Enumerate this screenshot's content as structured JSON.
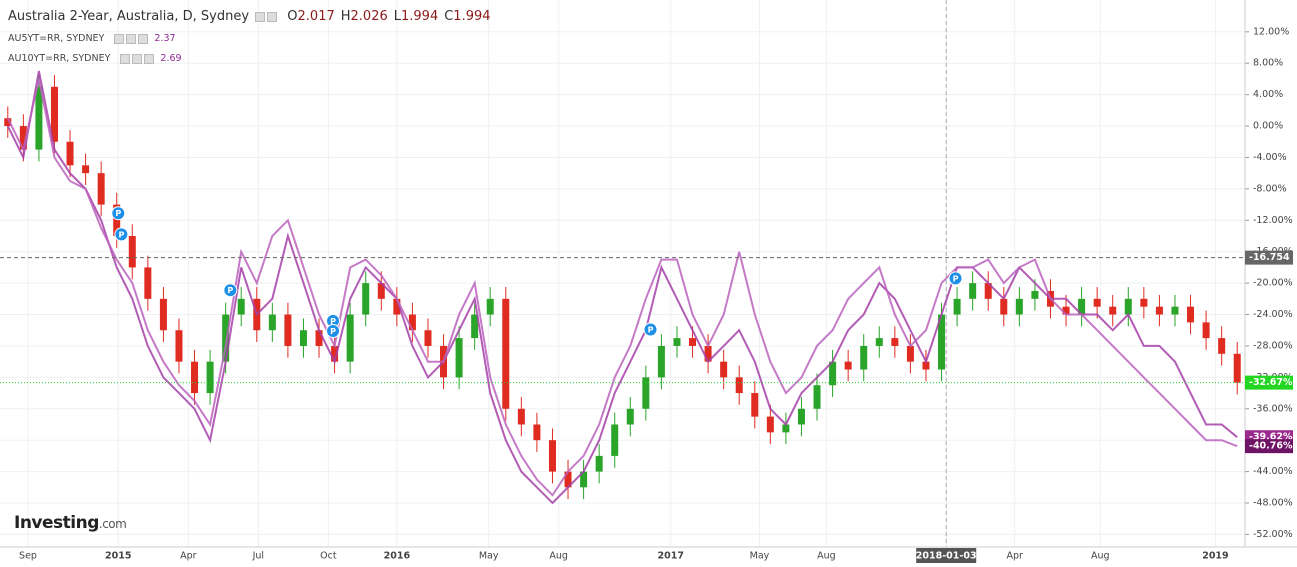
{
  "header": {
    "title": "Australia 2-Year, Australia, D, Sydney",
    "ohlc": [
      {
        "key": "O",
        "value": "2.017"
      },
      {
        "key": "H",
        "value": "2.026"
      },
      {
        "key": "L",
        "value": "1.994"
      },
      {
        "key": "C",
        "value": "1.994"
      }
    ]
  },
  "legend": [
    {
      "name": "AU5YT=RR, SYDNEY",
      "value": "2.37",
      "color": "#8e2a91"
    },
    {
      "name": "AU10YT=RR, SYDNEY",
      "value": "2.69",
      "color": "#8e2a91"
    }
  ],
  "logo": {
    "brand": "Investing",
    "suffix": ".com"
  },
  "chart_data": {
    "type": "candlestick",
    "xlim": [
      0,
      80
    ],
    "ylim": [
      -53.6,
      16.05
    ],
    "xticks": [
      {
        "value": 1.8,
        "label": "Sep"
      },
      {
        "value": 7.6,
        "label": "2015"
      },
      {
        "value": 12.1,
        "label": "Apr"
      },
      {
        "value": 16.6,
        "label": "Jul"
      },
      {
        "value": 21.1,
        "label": "Oct"
      },
      {
        "value": 25.5,
        "label": "2016"
      },
      {
        "value": 31.4,
        "label": "May"
      },
      {
        "value": 35.9,
        "label": "Aug"
      },
      {
        "value": 43.1,
        "label": "2017"
      },
      {
        "value": 48.8,
        "label": "May"
      },
      {
        "value": 53.1,
        "label": "Aug"
      },
      {
        "value": 60.8,
        "label": "2018-01-03"
      },
      {
        "value": 65.2,
        "label": "Apr"
      },
      {
        "value": 70.7,
        "label": "Aug"
      },
      {
        "value": 78.1,
        "label": "2019"
      }
    ],
    "crosshair_tick": 11,
    "yticks": [
      {
        "value": 12,
        "label": "12.00%"
      },
      {
        "value": 8,
        "label": "8.00%"
      },
      {
        "value": 4,
        "label": "4.00%"
      },
      {
        "value": 0,
        "label": "0.00%"
      },
      {
        "value": -4,
        "label": "-4.00%"
      },
      {
        "value": -8,
        "label": "-8.00%"
      },
      {
        "value": -12,
        "label": "-12.00%"
      },
      {
        "value": -16,
        "label": "-16.00%"
      },
      {
        "value": -20,
        "label": "-20.00%"
      },
      {
        "value": -24,
        "label": "-24.00%"
      },
      {
        "value": -28,
        "label": "-28.00%"
      },
      {
        "value": -32,
        "label": "-32.00%"
      },
      {
        "value": -36,
        "label": "-36.00%"
      },
      {
        "value": -40,
        "label": "-40.00%"
      },
      {
        "value": -44,
        "label": "-44.00%"
      },
      {
        "value": -48,
        "label": "-48.00%"
      },
      {
        "value": -52,
        "label": "-52.00%"
      }
    ],
    "grid": true,
    "up_color": "#2aa52a",
    "down_color": "#e02b20",
    "candles": {
      "open": [
        1,
        0,
        -3,
        5,
        -2,
        -5,
        -6,
        -10,
        -14,
        -18,
        -22,
        -26,
        -30,
        -34,
        -30,
        -24,
        -22,
        -26,
        -24,
        -28,
        -26,
        -28,
        -30,
        -24,
        -20,
        -22,
        -24,
        -26,
        -28,
        -32,
        -27,
        -24,
        -22,
        -36,
        -38,
        -40,
        -44,
        -46,
        -44,
        -42,
        -38,
        -36,
        -32,
        -28,
        -27,
        -28,
        -30,
        -32,
        -34,
        -37,
        -39,
        -38,
        -36,
        -33,
        -30,
        -31,
        -28,
        -27,
        -28,
        -30,
        -31,
        -24,
        -22,
        -20,
        -22,
        -24,
        -22,
        -21,
        -23,
        -24,
        -22,
        -23,
        -24,
        -22,
        -23,
        -24,
        -23,
        -25,
        -27,
        -29
      ],
      "high": [
        2.5,
        1.5,
        6.5,
        6.5,
        -0.5,
        -3.5,
        -4.5,
        -8.5,
        -12.5,
        -16.5,
        -20.5,
        -24.5,
        -28.5,
        -28.5,
        -22.5,
        -20.5,
        -20.5,
        -22.5,
        -22.5,
        -24.5,
        -24.5,
        -26.5,
        -22.5,
        -18.5,
        -18.5,
        -20.5,
        -22.5,
        -24.5,
        -26.5,
        -25.5,
        -22.5,
        -20.5,
        -20.5,
        -34.5,
        -36.5,
        -38.5,
        -42.5,
        -42.5,
        -40.5,
        -36.5,
        -34.5,
        -30.5,
        -26.5,
        -25.5,
        -25.5,
        -26.5,
        -28.5,
        -30.5,
        -32.5,
        -35.5,
        -36.5,
        -34.5,
        -31.5,
        -28.5,
        -28.5,
        -26.5,
        -25.5,
        -25.5,
        -26.5,
        -28.5,
        -22.5,
        -20.5,
        -18.5,
        -18.5,
        -20.5,
        -20.5,
        -19.5,
        -19.5,
        -21.5,
        -20.5,
        -20.5,
        -21.5,
        -20.5,
        -20.5,
        -21.5,
        -21.5,
        -21.5,
        -23.5,
        -25.5,
        -27.5
      ],
      "low": [
        -1.5,
        -4.5,
        -4.5,
        -3.5,
        -6.5,
        -7.5,
        -11.5,
        -15.5,
        -19.5,
        -23.5,
        -27.5,
        -31.5,
        -35.5,
        -35.5,
        -31.5,
        -25.5,
        -27.5,
        -27.5,
        -29.5,
        -29.5,
        -29.5,
        -31.5,
        -31.5,
        -25.5,
        -23.5,
        -25.5,
        -27.5,
        -29.5,
        -33.5,
        -33.5,
        -28.5,
        -25.5,
        -37.5,
        -39.5,
        -41.5,
        -45.5,
        -47.5,
        -47.5,
        -45.5,
        -43.5,
        -39.5,
        -37.5,
        -33.5,
        -29.5,
        -29.5,
        -31.5,
        -33.5,
        -35.5,
        -38.5,
        -40.5,
        -40.5,
        -39.5,
        -37.5,
        -34.5,
        -32.5,
        -32.5,
        -29.5,
        -29.5,
        -31.5,
        -32.5,
        -32.5,
        -25.5,
        -23.5,
        -23.5,
        -25.5,
        -25.5,
        -23.5,
        -24.5,
        -25.5,
        -25.5,
        -24.5,
        -25.5,
        -25.5,
        -24.5,
        -25.5,
        -25.5,
        -26.5,
        -28.5,
        -30.5,
        -34.17
      ],
      "close": [
        0,
        -3,
        5,
        -2,
        -5,
        -6,
        -10,
        -14,
        -18,
        -22,
        -26,
        -30,
        -34,
        -30,
        -24,
        -22,
        -26,
        -24,
        -28,
        -26,
        -28,
        -30,
        -24,
        -20,
        -22,
        -24,
        -26,
        -28,
        -32,
        -27,
        -24,
        -22,
        -36,
        -38,
        -40,
        -44,
        -46,
        -44,
        -42,
        -38,
        -36,
        -32,
        -28,
        -27,
        -28,
        -30,
        -32,
        -34,
        -37,
        -39,
        -38,
        -36,
        -33,
        -30,
        -31,
        -28,
        -27,
        -28,
        -30,
        -31,
        -24,
        -22,
        -20,
        -22,
        -24,
        -22,
        -21,
        -23,
        -24,
        -22,
        -23,
        -24,
        -22,
        -23,
        -24,
        -23,
        -25,
        -27,
        -29,
        -32.67
      ]
    },
    "series": [
      {
        "name": "AU5YT=RR, SYDNEY",
        "color": "#a640a8",
        "values": [
          0,
          -4,
          7,
          -3,
          -6,
          -8,
          -12,
          -18,
          -22,
          -28,
          -32,
          -34,
          -36,
          -40,
          -30,
          -18,
          -24,
          -22,
          -14,
          -20,
          -26,
          -30,
          -22,
          -18,
          -20,
          -22,
          -28,
          -32,
          -30,
          -26,
          -22,
          -34,
          -40,
          -44,
          -46,
          -48,
          -46,
          -44,
          -40,
          -34,
          -30,
          -26,
          -18,
          -22,
          -26,
          -30,
          -28,
          -26,
          -30,
          -36,
          -38,
          -34,
          -32,
          -30,
          -26,
          -24,
          -20,
          -22,
          -26,
          -30,
          -24,
          -18,
          -18,
          -20,
          -22,
          -18,
          -20,
          -22,
          -22,
          -24,
          -24,
          -26,
          -24,
          -28,
          -28,
          -30,
          -34,
          -38,
          -38,
          -39.62
        ]
      },
      {
        "name": "AU10YT=RR, SYDNEY",
        "color": "#bb62bd",
        "values": [
          1,
          -3,
          6,
          -4,
          -7,
          -8,
          -13,
          -17,
          -20,
          -26,
          -30,
          -33,
          -35,
          -38,
          -28,
          -16,
          -20,
          -14,
          -12,
          -18,
          -24,
          -28,
          -18,
          -17,
          -19,
          -22,
          -26,
          -30,
          -30,
          -24,
          -20,
          -32,
          -38,
          -42,
          -45,
          -47,
          -44,
          -42,
          -38,
          -32,
          -28,
          -22,
          -17,
          -17,
          -24,
          -28,
          -24,
          -16,
          -24,
          -30,
          -34,
          -32,
          -28,
          -26,
          -22,
          -20,
          -18,
          -24,
          -28,
          -26,
          -20,
          -18,
          -18,
          -17,
          -20,
          -18,
          -17,
          -22,
          -24,
          -24,
          -26,
          -28,
          -30,
          -32,
          -34,
          -36,
          -38,
          -40,
          -40,
          -40.76
        ]
      }
    ],
    "markers": [
      {
        "value": -16.754,
        "label": "-16.754",
        "color": "#666666",
        "line": "dashed"
      },
      {
        "value": -32.67,
        "label": "-32.67%",
        "color": "#22d622",
        "line": "dotted"
      },
      {
        "value": -39.62,
        "label": "-39.62%",
        "color": "#9c2a8e"
      },
      {
        "value": -40.76,
        "label": "-40.76%",
        "color": "#6e1466"
      }
    ],
    "events": [
      {
        "x": 7.6,
        "value": -11.1,
        "label": "P"
      },
      {
        "x": 7.8,
        "value": -13.8,
        "label": "P"
      },
      {
        "x": 14.8,
        "value": -20.9,
        "label": "P"
      },
      {
        "x": 21.4,
        "value": -24.8,
        "label": "P"
      },
      {
        "x": 21.4,
        "value": -26.1,
        "label": "P"
      },
      {
        "x": 41.8,
        "value": -25.9,
        "label": "P"
      },
      {
        "x": 61.4,
        "value": -19.4,
        "label": "P"
      }
    ]
  }
}
